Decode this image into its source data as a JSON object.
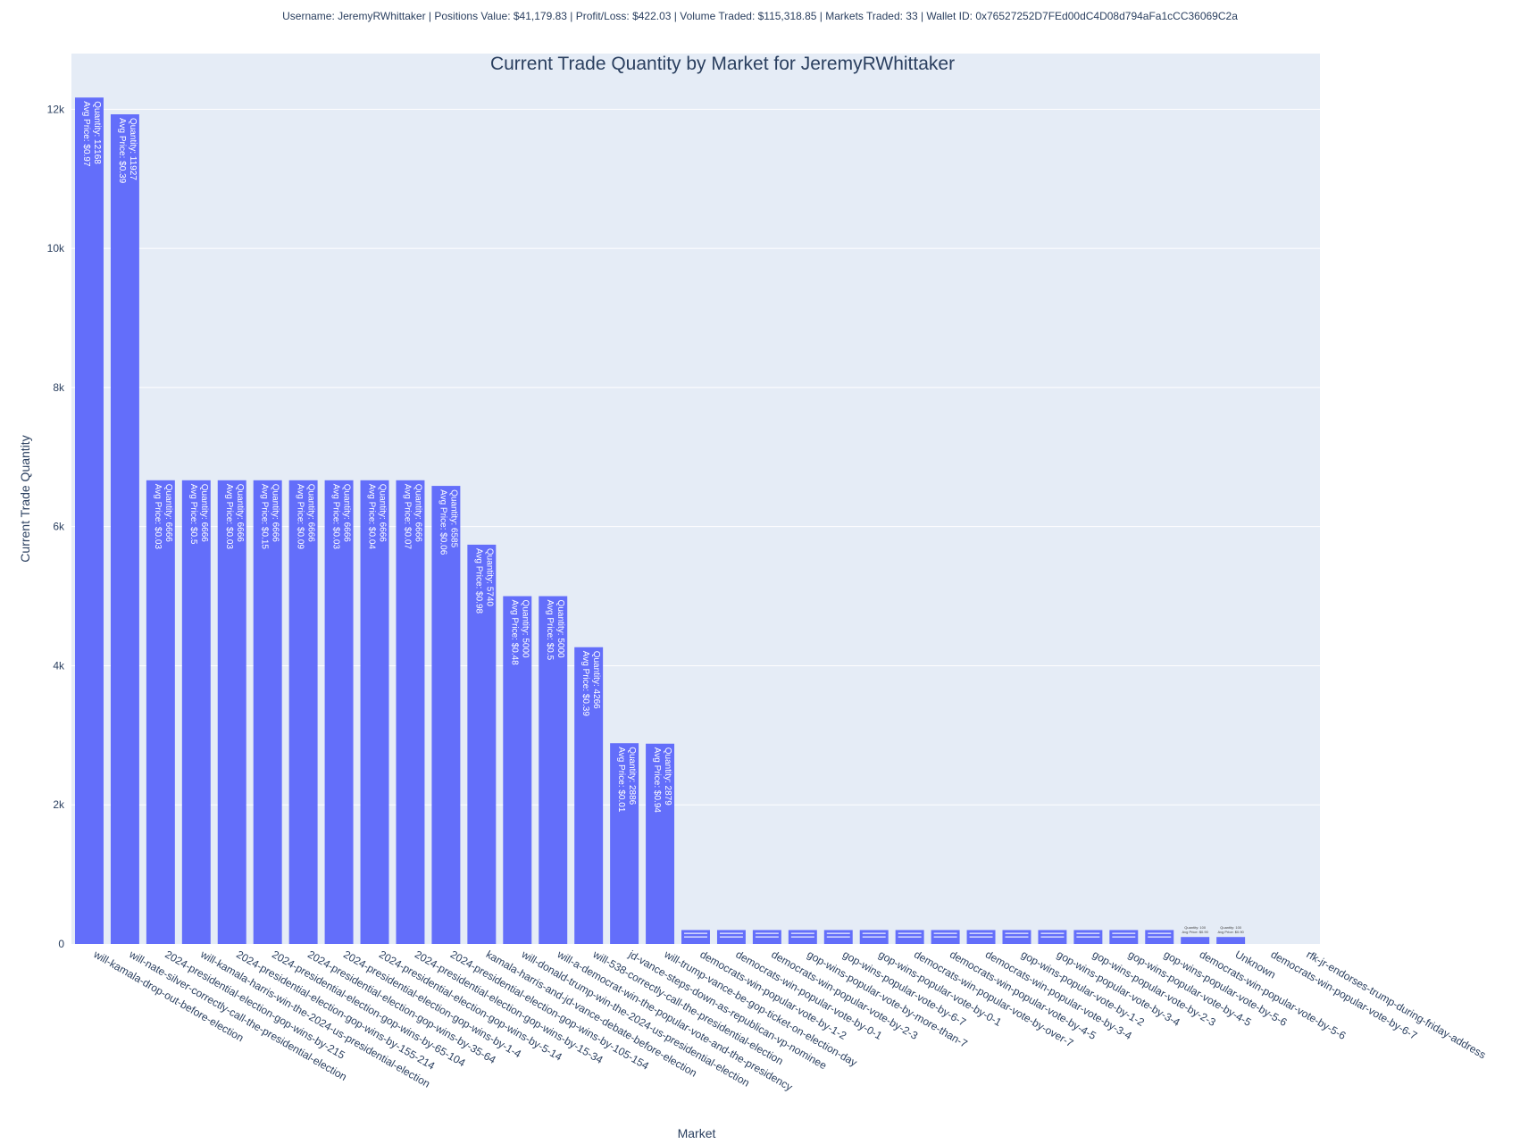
{
  "summary_text": "Username: JeremyRWhittaker | Positions Value: $41,179.83 | Profit/Loss: $422.03 | Volume Traded: $115,318.85 | Markets Traded: 33 | Wallet ID: 0x76527252D7FEd00dC4D08d794aFa1cCC36069C2a",
  "colors": {
    "bar": "#636efa",
    "plot_background": "#e5ecf6",
    "gridline": "#ffffff",
    "text": "#2a3f5f"
  },
  "chart_data": {
    "type": "bar",
    "title": "Current Trade Quantity by Market for JeremyRWhittaker",
    "xlabel": "Market",
    "ylabel": "Current Trade Quantity",
    "ylim": [
      0,
      12800
    ],
    "y_ticks": [
      0,
      2000,
      4000,
      6000,
      8000,
      10000,
      12000
    ],
    "y_tick_labels": [
      "0",
      "2k",
      "4k",
      "6k",
      "8k",
      "10k",
      "12k"
    ],
    "grid": true,
    "categories": [
      "will-kamala-drop-out-before-election",
      "will-nate-silver-correctly-call-the-presidential-election",
      "2024-presidential-election-gop-wins-by-215",
      "will-kamala-harris-win-the-2024-us-presidential-election",
      "2024-presidential-election-gop-wins-by-155-214",
      "2024-presidential-election-gop-wins-by-65-104",
      "2024-presidential-election-gop-wins-by-35-64",
      "2024-presidential-election-gop-wins-by-1-4",
      "2024-presidential-election-gop-wins-by-5-14",
      "2024-presidential-election-gop-wins-by-15-34",
      "2024-presidential-election-gop-wins-by-105-154",
      "kamala-harris-and-jd-vance-debate-before-election",
      "will-donald-trump-win-the-2024-us-presidential-election",
      "will-a-democrat-win-the-popular-vote-and-the-presidency",
      "will-538-correctly-call-the-presidential-election",
      "jd-vance-steps-down-as-republican-vp-nominee",
      "will-trump-vance-be-gop-ticket-on-election-day",
      "democrats-win-popular-vote-by-1-2",
      "democrats-win-popular-vote-by-0-1",
      "democrats-win-popular-vote-by-2-3",
      "gop-wins-popular-vote-by-more-than-7",
      "gop-wins-popular-vote-by-6-7",
      "gop-wins-popular-vote-by-0-1",
      "democrats-win-popular-vote-by-over-7",
      "democrats-win-popular-vote-by-4-5",
      "democrats-win-popular-vote-by-3-4",
      "gop-wins-popular-vote-by-1-2",
      "gop-wins-popular-vote-by-3-4",
      "gop-wins-popular-vote-by-2-3",
      "gop-wins-popular-vote-by-4-5",
      "gop-wins-popular-vote-by-5-6",
      "democrats-win-popular-vote-by-5-6",
      "Unknown",
      "democrats-win-popular-vote-by-6-7",
      "rfk-jr-endorses-trump-during-friday-address"
    ],
    "values": [
      12168,
      11927,
      6666,
      6666,
      6666,
      6666,
      6666,
      6666,
      6666,
      6666,
      6585,
      5740,
      5000,
      5000,
      4266,
      2886,
      2879,
      200,
      200,
      200,
      200,
      200,
      200,
      200,
      200,
      200,
      200,
      200,
      200,
      200,
      200,
      100,
      100,
      0,
      0
    ],
    "bar_labels": [
      [
        "Quantity: 12168",
        "Avg Price: $0.97"
      ],
      [
        "Quantity: 11927",
        "Avg Price: $0.39"
      ],
      [
        "Quantity: 6666",
        "Avg Price: $0.03"
      ],
      [
        "Quantity: 6666",
        "Avg Price: $0.5"
      ],
      [
        "Quantity: 6666",
        "Avg Price: $0.03"
      ],
      [
        "Quantity: 6666",
        "Avg Price: $0.15"
      ],
      [
        "Quantity: 6666",
        "Avg Price: $0.09"
      ],
      [
        "Quantity: 6666",
        "Avg Price: $0.03"
      ],
      [
        "Quantity: 6666",
        "Avg Price: $0.04"
      ],
      [
        "Quantity: 6666",
        "Avg Price: $0.07"
      ],
      [
        "Quantity: 6585",
        "Avg Price: $0.06"
      ],
      [
        "Quantity: 5740",
        "Avg Price: $0.98"
      ],
      [
        "Quantity: 5000",
        "Avg Price: $0.48"
      ],
      [
        "Quantity: 5000",
        "Avg Price: $0.5"
      ],
      [
        "Quantity: 4266",
        "Avg Price: $0.39"
      ],
      [
        "Quantity: 2886",
        "Avg Price: $0.01"
      ],
      [
        "Quantity: 2879",
        "Avg Price: $0.94"
      ],
      [],
      [],
      [],
      [],
      [],
      [],
      [],
      [],
      [],
      [],
      [],
      [],
      [],
      [],
      [
        "Quantity: 100",
        "Avg Price: $0.90"
      ],
      [
        "Quantity: 100",
        "Avg Price: $0.90"
      ],
      [],
      []
    ]
  }
}
